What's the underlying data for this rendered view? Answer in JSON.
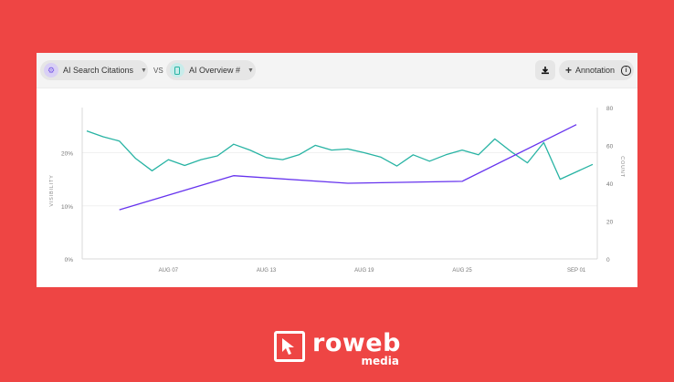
{
  "toolbar": {
    "metric_a": {
      "label": "AI Search Citations",
      "icon": "gear-circle-icon",
      "color": "#d9d0f5"
    },
    "vs_label": "VS",
    "metric_b": {
      "label": "AI Overview #",
      "icon": "smartphone-icon",
      "color": "#c8ecea"
    },
    "download_icon": "download-icon",
    "annotation_label": "Annotation",
    "info_icon": "info-icon"
  },
  "chart_data": {
    "type": "line",
    "x_ticks": [
      "AUG 07",
      "AUG 13",
      "AUG 19",
      "AUG 25",
      "SEP 01"
    ],
    "x_tick_index": [
      5,
      11,
      17,
      23,
      30
    ],
    "y_left": {
      "label": "VISIBILITY",
      "ticks": [
        "0%",
        "10%",
        "20%"
      ],
      "tick_values": [
        0,
        10,
        20
      ],
      "range": [
        0,
        28.5
      ]
    },
    "y_right": {
      "label": "COUNT",
      "ticks": [
        "0",
        "20",
        "40",
        "60",
        "80"
      ],
      "tick_values": [
        0,
        20,
        40,
        60,
        80
      ],
      "range": [
        0,
        80
      ]
    },
    "series": [
      {
        "axis": "left",
        "color": "#27b3a3",
        "x": [
          0,
          1,
          2,
          3,
          4,
          5,
          6,
          7,
          8,
          9,
          10,
          11,
          12,
          13,
          14,
          15,
          16,
          17,
          18,
          19,
          20,
          21,
          22,
          23,
          24,
          25,
          26,
          27,
          28,
          29,
          30,
          31
        ],
        "values": [
          24.1,
          23,
          22.2,
          18.9,
          16.6,
          18.7,
          17.6,
          18.7,
          19.4,
          21.6,
          20.5,
          19.1,
          18.7,
          19.6,
          21.4,
          20.5,
          20.7,
          20.0,
          19.2,
          17.5,
          19.6,
          18.4,
          19.6,
          20.5,
          19.6,
          22.6,
          20.2,
          18.1,
          21.9,
          15.0,
          16.4,
          17.8
        ]
      },
      {
        "axis": "right",
        "color": "#6633ee",
        "x": [
          2,
          9,
          16,
          23,
          30
        ],
        "values": [
          26,
          44,
          40,
          41,
          71
        ]
      }
    ],
    "grid": true
  },
  "brand": {
    "name": "roweb",
    "sub": "media"
  }
}
